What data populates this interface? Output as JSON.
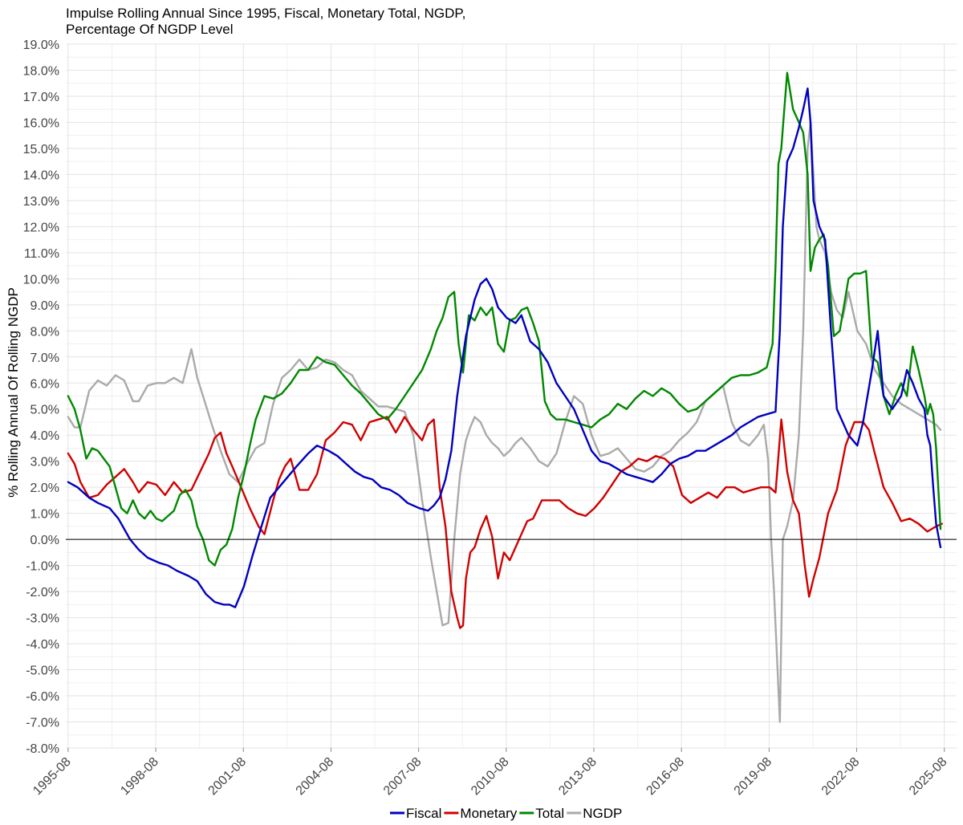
{
  "chart_data": {
    "type": "line",
    "title": "Impulse Rolling Annual Since 1995, Fiscal, Monetary Total, NGDP,",
    "subtitle": "Percentage Of NGDP Level",
    "xlabel": "",
    "ylabel": "% Rolling Annual Of Rolling NGDP",
    "xlim": [
      1995.5,
      2026.0
    ],
    "ylim": [
      -8.0,
      19.0
    ],
    "ytick_step": 1.0,
    "y_tick_labels": [
      "-8.0%",
      "-7.0%",
      "-6.0%",
      "-5.0%",
      "-4.0%",
      "-3.0%",
      "-2.0%",
      "-1.0%",
      "0.0%",
      "1.0%",
      "2.0%",
      "3.0%",
      "4.0%",
      "5.0%",
      "6.0%",
      "7.0%",
      "8.0%",
      "9.0%",
      "10.0%",
      "11.0%",
      "12.0%",
      "13.0%",
      "14.0%",
      "15.0%",
      "16.0%",
      "17.0%",
      "18.0%",
      "19.0%"
    ],
    "x_ticks": [
      {
        "label": "1995-08",
        "value": 1995.58
      },
      {
        "label": "1998-08",
        "value": 1998.58
      },
      {
        "label": "2001-08",
        "value": 2001.58
      },
      {
        "label": "2004-08",
        "value": 2004.58
      },
      {
        "label": "2007-08",
        "value": 2007.58
      },
      {
        "label": "2010-08",
        "value": 2010.58
      },
      {
        "label": "2013-08",
        "value": 2013.58
      },
      {
        "label": "2016-08",
        "value": 2016.58
      },
      {
        "label": "2019-08",
        "value": 2019.58
      },
      {
        "label": "2022-08",
        "value": 2022.58
      },
      {
        "label": "2025-08",
        "value": 2025.58
      }
    ],
    "reference_line_y": 0.0,
    "legend": {
      "position": "bottom"
    },
    "series": [
      {
        "name": "Fiscal",
        "color": "#0000c0",
        "x": [
          1995.58,
          1995.9,
          1996.3,
          1996.6,
          1997.0,
          1997.3,
          1997.7,
          1998.0,
          1998.3,
          1998.7,
          1999.0,
          1999.3,
          1999.7,
          2000.0,
          2000.3,
          2000.6,
          2000.9,
          2001.1,
          2001.3,
          2001.6,
          2001.9,
          2002.2,
          2002.5,
          2002.8,
          2003.1,
          2003.4,
          2003.8,
          2004.1,
          2004.5,
          2004.8,
          2005.1,
          2005.4,
          2005.7,
          2006.0,
          2006.3,
          2006.6,
          2006.9,
          2007.2,
          2007.6,
          2007.9,
          2008.1,
          2008.3,
          2008.5,
          2008.7,
          2008.9,
          2009.2,
          2009.5,
          2009.7,
          2009.9,
          2010.1,
          2010.3,
          2010.6,
          2010.9,
          2011.1,
          2011.4,
          2011.7,
          2012.0,
          2012.3,
          2012.6,
          2012.9,
          2013.2,
          2013.5,
          2013.8,
          2014.1,
          2014.4,
          2014.7,
          2015.0,
          2015.3,
          2015.6,
          2015.9,
          2016.2,
          2016.5,
          2016.8,
          2017.1,
          2017.4,
          2017.7,
          2018.0,
          2018.3,
          2018.6,
          2018.9,
          2019.2,
          2019.5,
          2019.8,
          2019.95,
          2020.05,
          2020.2,
          2020.4,
          2020.6,
          2020.75,
          2020.9,
          2021.0,
          2021.1,
          2021.3,
          2021.5,
          2021.7,
          2021.9,
          2022.1,
          2022.3,
          2022.6,
          2022.8,
          2022.95,
          2023.1,
          2023.3,
          2023.5,
          2023.8,
          2024.1,
          2024.3,
          2024.5,
          2024.7,
          2024.9,
          2025.0,
          2025.1,
          2025.2,
          2025.3,
          2025.45
        ],
        "values": [
          2.2,
          2.0,
          1.6,
          1.4,
          1.2,
          0.8,
          0.0,
          -0.4,
          -0.7,
          -0.9,
          -1.0,
          -1.2,
          -1.4,
          -1.6,
          -2.1,
          -2.4,
          -2.5,
          -2.5,
          -2.6,
          -1.8,
          -0.6,
          0.5,
          1.6,
          2.0,
          2.4,
          2.8,
          3.3,
          3.6,
          3.4,
          3.2,
          2.9,
          2.6,
          2.4,
          2.3,
          2.0,
          1.9,
          1.7,
          1.4,
          1.2,
          1.1,
          1.3,
          1.6,
          2.3,
          3.4,
          5.5,
          7.8,
          9.2,
          9.8,
          10.0,
          9.6,
          8.9,
          8.5,
          8.3,
          8.6,
          7.6,
          7.3,
          6.8,
          6.0,
          5.5,
          5.0,
          4.2,
          3.4,
          3.0,
          2.9,
          2.7,
          2.5,
          2.4,
          2.3,
          2.2,
          2.5,
          2.9,
          3.1,
          3.2,
          3.4,
          3.4,
          3.6,
          3.8,
          4.0,
          4.3,
          4.5,
          4.7,
          4.8,
          4.9,
          8.0,
          12.0,
          14.5,
          15.0,
          15.8,
          16.5,
          17.3,
          16.0,
          13.0,
          12.0,
          11.5,
          8.0,
          5.0,
          4.5,
          4.0,
          3.6,
          4.5,
          5.5,
          6.5,
          8.0,
          5.5,
          5.0,
          5.5,
          6.5,
          6.0,
          5.4,
          5.0,
          4.0,
          3.6,
          2.0,
          0.6,
          -0.3
        ]
      },
      {
        "name": "Monetary",
        "color": "#d00000",
        "x": [
          1995.58,
          1995.8,
          1996.0,
          1996.3,
          1996.6,
          1996.9,
          1997.2,
          1997.5,
          1997.8,
          1998.0,
          1998.3,
          1998.6,
          1998.9,
          1999.2,
          1999.5,
          1999.8,
          2000.1,
          2000.4,
          2000.6,
          2000.8,
          2001.0,
          2001.2,
          2001.5,
          2001.8,
          2002.1,
          2002.3,
          2002.6,
          2002.8,
          2003.0,
          2003.2,
          2003.5,
          2003.8,
          2004.1,
          2004.4,
          2004.7,
          2005.0,
          2005.3,
          2005.6,
          2005.9,
          2006.2,
          2006.5,
          2006.8,
          2007.1,
          2007.4,
          2007.7,
          2007.9,
          2008.1,
          2008.3,
          2008.5,
          2008.7,
          2008.9,
          2009.0,
          2009.1,
          2009.2,
          2009.35,
          2009.5,
          2009.7,
          2009.9,
          2010.1,
          2010.3,
          2010.5,
          2010.7,
          2010.9,
          2011.1,
          2011.3,
          2011.5,
          2011.8,
          2012.1,
          2012.4,
          2012.7,
          2013.0,
          2013.3,
          2013.6,
          2013.9,
          2014.2,
          2014.5,
          2014.8,
          2015.1,
          2015.4,
          2015.7,
          2016.0,
          2016.3,
          2016.6,
          2016.9,
          2017.2,
          2017.5,
          2017.8,
          2018.1,
          2018.4,
          2018.7,
          2019.0,
          2019.3,
          2019.6,
          2019.8,
          2020.0,
          2020.2,
          2020.4,
          2020.6,
          2020.8,
          2020.95,
          2021.1,
          2021.3,
          2021.6,
          2021.9,
          2022.2,
          2022.5,
          2022.8,
          2023.0,
          2023.2,
          2023.5,
          2023.8,
          2024.1,
          2024.4,
          2024.7,
          2025.0,
          2025.3,
          2025.5
        ],
        "values": [
          3.3,
          2.9,
          2.2,
          1.6,
          1.7,
          2.1,
          2.4,
          2.7,
          2.2,
          1.8,
          2.2,
          2.1,
          1.7,
          2.2,
          1.8,
          1.9,
          2.6,
          3.3,
          3.9,
          4.1,
          3.3,
          2.8,
          2.0,
          1.2,
          0.5,
          0.2,
          1.5,
          2.3,
          2.8,
          3.1,
          1.9,
          1.9,
          2.5,
          3.8,
          4.1,
          4.5,
          4.4,
          3.8,
          4.5,
          4.6,
          4.7,
          4.1,
          4.7,
          4.2,
          3.8,
          4.4,
          4.6,
          2.0,
          0.5,
          -2.0,
          -3.0,
          -3.4,
          -3.3,
          -1.5,
          -0.5,
          -0.3,
          0.4,
          0.9,
          0.1,
          -1.5,
          -0.5,
          -0.8,
          -0.3,
          0.2,
          0.7,
          0.8,
          1.5,
          1.5,
          1.5,
          1.2,
          1.0,
          0.9,
          1.2,
          1.6,
          2.1,
          2.6,
          2.8,
          3.1,
          3.0,
          3.2,
          3.1,
          2.8,
          1.7,
          1.4,
          1.6,
          1.8,
          1.6,
          2.0,
          2.0,
          1.8,
          1.9,
          2.0,
          2.0,
          1.8,
          4.6,
          2.6,
          1.5,
          1.0,
          -1.0,
          -2.2,
          -1.5,
          -0.7,
          1.0,
          1.9,
          3.6,
          4.5,
          4.5,
          4.2,
          3.3,
          2.0,
          1.4,
          0.7,
          0.8,
          0.6,
          0.3,
          0.5,
          0.6
        ]
      },
      {
        "name": "Total",
        "color": "#008800",
        "x": [
          1995.58,
          1995.8,
          1996.0,
          1996.2,
          1996.4,
          1996.6,
          1996.8,
          1997.0,
          1997.2,
          1997.4,
          1997.6,
          1997.8,
          1998.0,
          1998.2,
          1998.4,
          1998.6,
          1998.8,
          1999.0,
          1999.2,
          1999.4,
          1999.6,
          1999.8,
          2000.0,
          2000.2,
          2000.4,
          2000.6,
          2000.8,
          2001.0,
          2001.2,
          2001.4,
          2001.6,
          2001.8,
          2002.0,
          2002.3,
          2002.6,
          2002.9,
          2003.2,
          2003.5,
          2003.8,
          2004.1,
          2004.4,
          2004.7,
          2005.0,
          2005.3,
          2005.6,
          2005.9,
          2006.2,
          2006.5,
          2006.8,
          2007.1,
          2007.4,
          2007.7,
          2008.0,
          2008.2,
          2008.4,
          2008.6,
          2008.8,
          2008.95,
          2009.1,
          2009.3,
          2009.5,
          2009.7,
          2009.9,
          2010.1,
          2010.3,
          2010.5,
          2010.7,
          2010.9,
          2011.1,
          2011.3,
          2011.5,
          2011.7,
          2011.9,
          2012.1,
          2012.3,
          2012.6,
          2012.9,
          2013.2,
          2013.5,
          2013.8,
          2014.1,
          2014.4,
          2014.7,
          2015.0,
          2015.3,
          2015.6,
          2015.9,
          2016.2,
          2016.5,
          2016.8,
          2017.1,
          2017.4,
          2017.7,
          2018.0,
          2018.3,
          2018.6,
          2018.9,
          2019.2,
          2019.5,
          2019.7,
          2019.8,
          2019.9,
          2020.0,
          2020.1,
          2020.2,
          2020.4,
          2020.6,
          2020.75,
          2020.9,
          2021.0,
          2021.15,
          2021.3,
          2021.45,
          2021.6,
          2021.8,
          2022.0,
          2022.15,
          2022.3,
          2022.5,
          2022.7,
          2022.9,
          2023.1,
          2023.3,
          2023.5,
          2023.7,
          2023.9,
          2024.1,
          2024.3,
          2024.5,
          2024.7,
          2024.9,
          2025.0,
          2025.1,
          2025.2,
          2025.3,
          2025.45
        ],
        "values": [
          5.5,
          5.0,
          4.2,
          3.1,
          3.5,
          3.4,
          3.1,
          2.8,
          2.0,
          1.2,
          1.0,
          1.5,
          1.0,
          0.8,
          1.1,
          0.8,
          0.7,
          0.9,
          1.1,
          1.7,
          1.9,
          1.5,
          0.5,
          0.0,
          -0.8,
          -1.0,
          -0.4,
          -0.2,
          0.4,
          1.6,
          2.5,
          3.6,
          4.6,
          5.5,
          5.4,
          5.6,
          6.0,
          6.5,
          6.5,
          7.0,
          6.8,
          6.7,
          6.3,
          5.9,
          5.6,
          5.2,
          4.8,
          4.6,
          5.0,
          5.5,
          6.0,
          6.5,
          7.3,
          8.0,
          8.5,
          9.3,
          9.5,
          7.5,
          6.4,
          8.6,
          8.4,
          8.9,
          8.6,
          8.9,
          7.5,
          7.2,
          8.4,
          8.5,
          8.8,
          8.9,
          8.3,
          7.6,
          5.3,
          4.8,
          4.6,
          4.6,
          4.5,
          4.4,
          4.3,
          4.6,
          4.8,
          5.2,
          5.0,
          5.4,
          5.7,
          5.5,
          5.8,
          5.6,
          5.2,
          4.9,
          5.0,
          5.3,
          5.6,
          5.9,
          6.2,
          6.3,
          6.3,
          6.4,
          6.6,
          7.5,
          10.5,
          14.4,
          15.0,
          16.5,
          17.9,
          16.5,
          16.0,
          15.6,
          14.0,
          10.3,
          11.2,
          11.5,
          11.7,
          10.5,
          7.8,
          8.0,
          9.0,
          10.0,
          10.2,
          10.2,
          10.3,
          7.0,
          6.8,
          5.5,
          4.8,
          5.5,
          6.0,
          5.5,
          7.4,
          6.5,
          5.5,
          4.8,
          5.2,
          4.8,
          3.5,
          0.4
        ]
      },
      {
        "name": "NGDP",
        "color": "#aaaaaa",
        "x": [
          1995.58,
          1995.8,
          1996.0,
          1996.3,
          1996.6,
          1996.9,
          1997.2,
          1997.5,
          1997.8,
          1998.0,
          1998.3,
          1998.6,
          1998.9,
          1999.2,
          1999.5,
          1999.8,
          2000.0,
          2000.2,
          2000.5,
          2000.8,
          2001.1,
          2001.4,
          2001.7,
          2002.0,
          2002.3,
          2002.6,
          2002.9,
          2003.2,
          2003.5,
          2003.8,
          2004.1,
          2004.4,
          2004.7,
          2005.0,
          2005.3,
          2005.6,
          2005.9,
          2006.2,
          2006.5,
          2006.8,
          2007.1,
          2007.4,
          2007.7,
          2008.0,
          2008.2,
          2008.4,
          2008.6,
          2008.8,
          2009.0,
          2009.2,
          2009.35,
          2009.5,
          2009.7,
          2009.9,
          2010.1,
          2010.3,
          2010.5,
          2010.7,
          2010.9,
          2011.1,
          2011.4,
          2011.7,
          2012.0,
          2012.3,
          2012.6,
          2012.9,
          2013.2,
          2013.5,
          2013.8,
          2014.1,
          2014.4,
          2014.7,
          2015.0,
          2015.3,
          2015.6,
          2015.9,
          2016.2,
          2016.5,
          2016.8,
          2017.1,
          2017.4,
          2017.7,
          2018.0,
          2018.3,
          2018.6,
          2018.9,
          2019.2,
          2019.4,
          2019.55,
          2019.65,
          2019.75,
          2019.85,
          2019.95,
          2020.05,
          2020.2,
          2020.4,
          2020.6,
          2020.75,
          2020.9,
          2021.0,
          2021.1,
          2021.2,
          2021.3,
          2021.5,
          2021.7,
          2021.9,
          2022.1,
          2022.3,
          2022.6,
          2022.9,
          2023.2,
          2023.5,
          2023.8,
          2024.1,
          2024.4,
          2024.7,
          2025.0,
          2025.3,
          2025.45
        ],
        "values": [
          4.7,
          4.3,
          4.3,
          5.7,
          6.1,
          5.9,
          6.3,
          6.1,
          5.3,
          5.3,
          5.9,
          6.0,
          6.0,
          6.2,
          6.0,
          7.3,
          6.2,
          5.5,
          4.4,
          3.4,
          2.5,
          2.2,
          2.9,
          3.5,
          3.7,
          5.2,
          6.2,
          6.5,
          6.9,
          6.5,
          6.6,
          6.9,
          6.8,
          6.5,
          6.3,
          5.7,
          5.4,
          5.1,
          5.1,
          5.0,
          4.9,
          4.0,
          1.5,
          -0.7,
          -2.0,
          -3.3,
          -3.2,
          0.0,
          2.5,
          3.8,
          4.3,
          4.7,
          4.5,
          4.0,
          3.7,
          3.5,
          3.2,
          3.4,
          3.7,
          3.9,
          3.5,
          3.0,
          2.8,
          3.3,
          4.5,
          5.5,
          5.2,
          4.0,
          3.2,
          3.3,
          3.5,
          3.1,
          2.7,
          2.6,
          2.8,
          3.2,
          3.4,
          3.8,
          4.1,
          4.5,
          5.3,
          5.6,
          5.9,
          4.5,
          3.8,
          3.6,
          4.0,
          4.4,
          3.0,
          0.0,
          -2.0,
          -4.5,
          -7.0,
          0.0,
          0.5,
          1.5,
          4.0,
          8.0,
          15.0,
          16.0,
          14.0,
          12.0,
          11.5,
          11.0,
          9.5,
          8.8,
          8.5,
          9.5,
          8.0,
          7.5,
          6.5,
          6.0,
          5.5,
          5.2,
          5.0,
          4.8,
          4.6,
          4.4,
          4.2
        ]
      }
    ]
  }
}
